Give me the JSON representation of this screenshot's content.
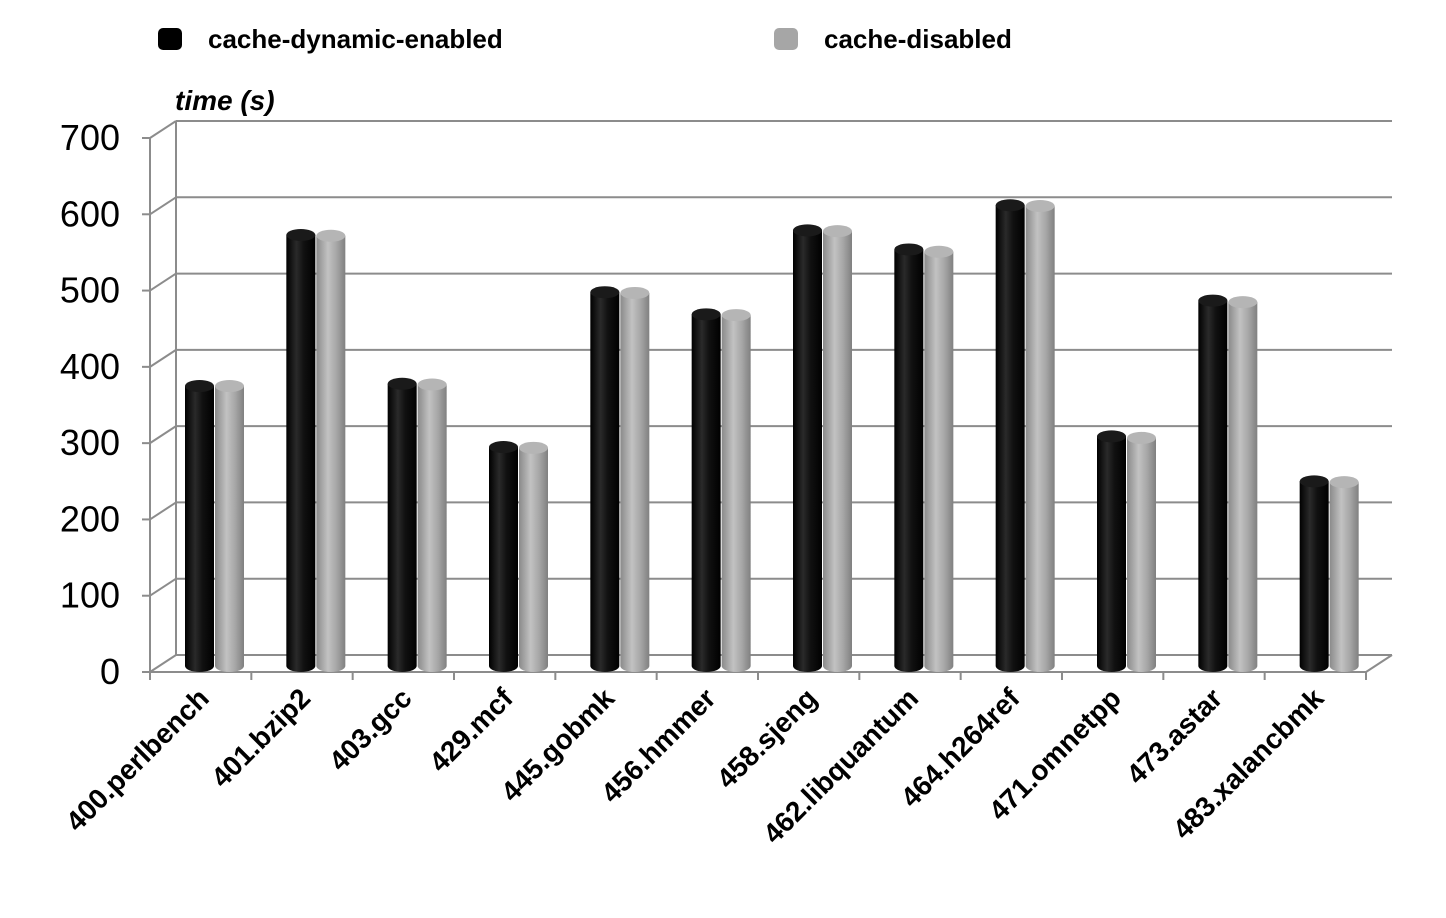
{
  "chart_data": {
    "type": "bar",
    "style": "3d-cylinder",
    "categories": [
      "400.perlbench",
      "401.bzip2",
      "403.gcc",
      "429.mcf",
      "445.gobmk",
      "456.hmmer",
      "458.sjeng",
      "462.libquantum",
      "464.h264ref",
      "471.omnetpp",
      "473.astar",
      "483.xalancbmk"
    ],
    "series": [
      {
        "name": "cache-dynamic-enabled",
        "color": "#000000",
        "values": [
          367,
          565,
          370,
          287,
          490,
          461,
          571,
          546,
          604,
          301,
          479,
          242
        ]
      },
      {
        "name": "cache-disabled",
        "color": "#a6a6a6",
        "values": [
          367,
          564,
          369,
          286,
          489,
          460,
          570,
          543,
          603,
          299,
          477,
          241
        ]
      }
    ],
    "ylabel": "time (s)",
    "xlabel": "",
    "ylim": [
      0,
      700
    ],
    "yticks": [
      "0",
      "100",
      "200",
      "300",
      "400",
      "500",
      "600",
      "700"
    ],
    "grid": true,
    "legend_position": "top"
  }
}
